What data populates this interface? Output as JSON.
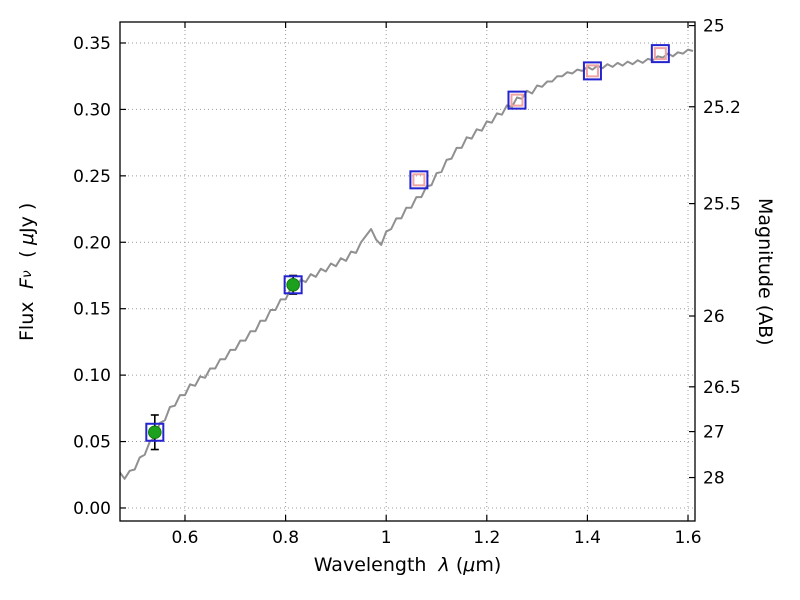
{
  "chart_data": {
    "type": "line",
    "title": "",
    "description": "Galaxy SED: model spectrum (grey line) with photometric points; flux vs wavelength, AB magnitude on right axis",
    "labels": {
      "xlabel_pre": "Wavelength  ",
      "xlabel_lambda": "λ",
      "xlabel_mid": " (",
      "xlabel_mu": "μ",
      "xlabel_post": "m)",
      "ylabel_left_pre": "Flux  ",
      "ylabel_left_F": "F",
      "ylabel_left_nu": "ν",
      "ylabel_left_mid": "  ( ",
      "ylabel_left_mu": "μ",
      "ylabel_left_post": "Jy )",
      "ylabel_right": "Magnitude (AB)"
    },
    "xlim": [
      0.4708,
      1.6139
    ],
    "ylim": [
      -0.0098,
      0.3658
    ],
    "grid": true,
    "x_ticks": {
      "values": [
        0.6,
        0.8,
        1.0,
        1.2,
        1.4,
        1.6
      ],
      "labels": [
        "0.6",
        "0.8",
        "1",
        "1.2",
        "1.4",
        "1.6"
      ]
    },
    "y_ticks_left": {
      "values": [
        0.0,
        0.05,
        0.1,
        0.15,
        0.2,
        0.25,
        0.3,
        0.35
      ],
      "labels": [
        "0.00",
        "0.05",
        "0.10",
        "0.15",
        "0.20",
        "0.25",
        "0.30",
        "0.35"
      ]
    },
    "y_ticks_right": [
      {
        "label": "25",
        "flux": 0.3631
      },
      {
        "label": "25.2",
        "flux": 0.302
      },
      {
        "label": "25.5",
        "flux": 0.2291
      },
      {
        "label": "26",
        "flux": 0.1445
      },
      {
        "label": "26.5",
        "flux": 0.0912
      },
      {
        "label": "27",
        "flux": 0.0575
      },
      {
        "label": "28",
        "flux": 0.0229
      }
    ],
    "spectrum": {
      "x": [
        0.47,
        0.48,
        0.49,
        0.5,
        0.51,
        0.52,
        0.53,
        0.54,
        0.55,
        0.56,
        0.57,
        0.58,
        0.59,
        0.6,
        0.61,
        0.62,
        0.63,
        0.64,
        0.65,
        0.66,
        0.67,
        0.68,
        0.69,
        0.7,
        0.71,
        0.72,
        0.73,
        0.74,
        0.75,
        0.76,
        0.77,
        0.78,
        0.79,
        0.8,
        0.81,
        0.82,
        0.83,
        0.84,
        0.85,
        0.86,
        0.87,
        0.88,
        0.89,
        0.9,
        0.91,
        0.92,
        0.93,
        0.94,
        0.95,
        0.96,
        0.97,
        0.98,
        0.99,
        1.0,
        1.01,
        1.02,
        1.03,
        1.04,
        1.05,
        1.06,
        1.07,
        1.08,
        1.09,
        1.1,
        1.11,
        1.12,
        1.13,
        1.14,
        1.15,
        1.16,
        1.17,
        1.18,
        1.19,
        1.2,
        1.21,
        1.22,
        1.23,
        1.24,
        1.25,
        1.26,
        1.27,
        1.28,
        1.29,
        1.3,
        1.31,
        1.32,
        1.33,
        1.34,
        1.35,
        1.36,
        1.37,
        1.38,
        1.39,
        1.4,
        1.41,
        1.42,
        1.43,
        1.44,
        1.45,
        1.46,
        1.47,
        1.48,
        1.49,
        1.5,
        1.51,
        1.52,
        1.53,
        1.54,
        1.55,
        1.56,
        1.57,
        1.58,
        1.59,
        1.6,
        1.61
      ],
      "y": [
        0.027,
        0.022,
        0.028,
        0.029,
        0.038,
        0.04,
        0.05,
        0.053,
        0.064,
        0.066,
        0.076,
        0.077,
        0.085,
        0.085,
        0.093,
        0.092,
        0.099,
        0.098,
        0.105,
        0.105,
        0.112,
        0.112,
        0.119,
        0.119,
        0.126,
        0.126,
        0.133,
        0.133,
        0.141,
        0.141,
        0.149,
        0.149,
        0.157,
        0.157,
        0.165,
        0.165,
        0.172,
        0.17,
        0.176,
        0.174,
        0.18,
        0.178,
        0.184,
        0.182,
        0.188,
        0.186,
        0.193,
        0.192,
        0.2,
        0.205,
        0.21,
        0.202,
        0.198,
        0.208,
        0.21,
        0.218,
        0.218,
        0.226,
        0.226,
        0.234,
        0.234,
        0.242,
        0.243,
        0.252,
        0.253,
        0.262,
        0.263,
        0.271,
        0.271,
        0.279,
        0.278,
        0.285,
        0.284,
        0.291,
        0.29,
        0.297,
        0.296,
        0.303,
        0.302,
        0.309,
        0.308,
        0.314,
        0.312,
        0.318,
        0.317,
        0.321,
        0.321,
        0.325,
        0.325,
        0.328,
        0.327,
        0.33,
        0.329,
        0.332,
        0.33,
        0.333,
        0.331,
        0.334,
        0.332,
        0.335,
        0.333,
        0.336,
        0.334,
        0.337,
        0.335,
        0.338,
        0.337,
        0.34,
        0.339,
        0.342,
        0.34,
        0.343,
        0.342,
        0.345,
        0.344
      ]
    },
    "photometry": {
      "measured": [
        {
          "x": 0.54,
          "y": 0.057,
          "yerr": 0.013
        },
        {
          "x": 0.815,
          "y": 0.168,
          "yerr": 0.007
        }
      ],
      "model": [
        {
          "x": 1.065,
          "y": 0.247
        },
        {
          "x": 1.26,
          "y": 0.307
        },
        {
          "x": 1.41,
          "y": 0.329
        },
        {
          "x": 1.545,
          "y": 0.342
        }
      ]
    },
    "style": {
      "spectrum_color": "#909090",
      "square_color": "#2323cf",
      "model_marker_color": "#f0a3a3",
      "measured_marker_color": "#1da11d",
      "measured_marker_edge": "#0d7a0d",
      "errorbar_color": "#000000",
      "grid_color": "#9c9c9c",
      "frame_color": "#000000",
      "text_color": "#000000"
    }
  }
}
